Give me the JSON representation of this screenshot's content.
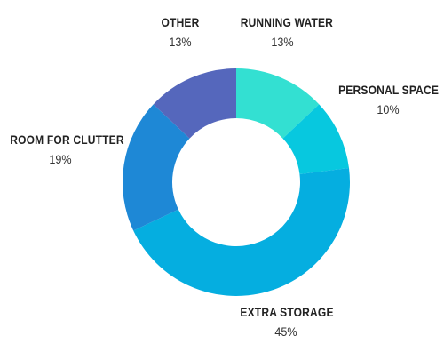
{
  "chart_data": {
    "type": "pie",
    "donut": true,
    "categories": [
      "RUNNING WATER",
      "PERSONAL SPACE",
      "EXTRA STORAGE",
      "ROOM FOR CLUTTER",
      "OTHER"
    ],
    "values": [
      13,
      10,
      45,
      19,
      13
    ],
    "value_labels": [
      "13%",
      "10%",
      "45%",
      "19%",
      "13%"
    ],
    "colors": [
      "#33E0D2",
      "#07C8DF",
      "#05AEE0",
      "#1E88D6",
      "#5567BC"
    ],
    "start": "12 o'clock",
    "direction": "clockwise",
    "legend": "none"
  }
}
